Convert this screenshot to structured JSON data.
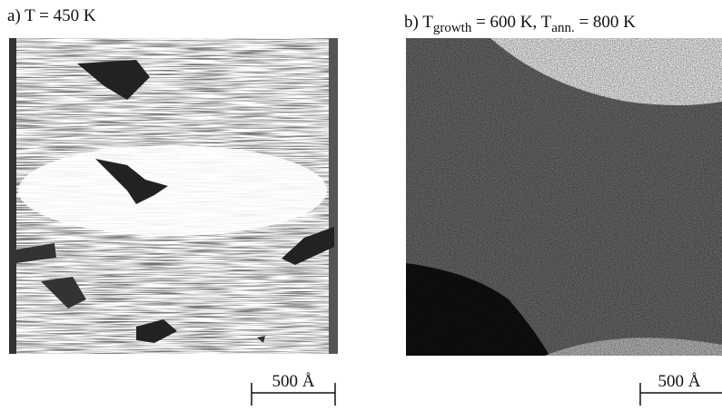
{
  "panels": [
    {
      "title_parts": [
        {
          "text": "a)  T = 450 K"
        }
      ],
      "scale_label": "500 Å"
    },
    {
      "title_parts": [
        {
          "text": "b)  T"
        },
        {
          "text": "growth",
          "sub": true
        },
        {
          "text": " = 600 K, T"
        },
        {
          "text": "ann.",
          "sub": true
        },
        {
          "text": " = 800 K"
        }
      ],
      "scale_label": "500 Å"
    }
  ]
}
